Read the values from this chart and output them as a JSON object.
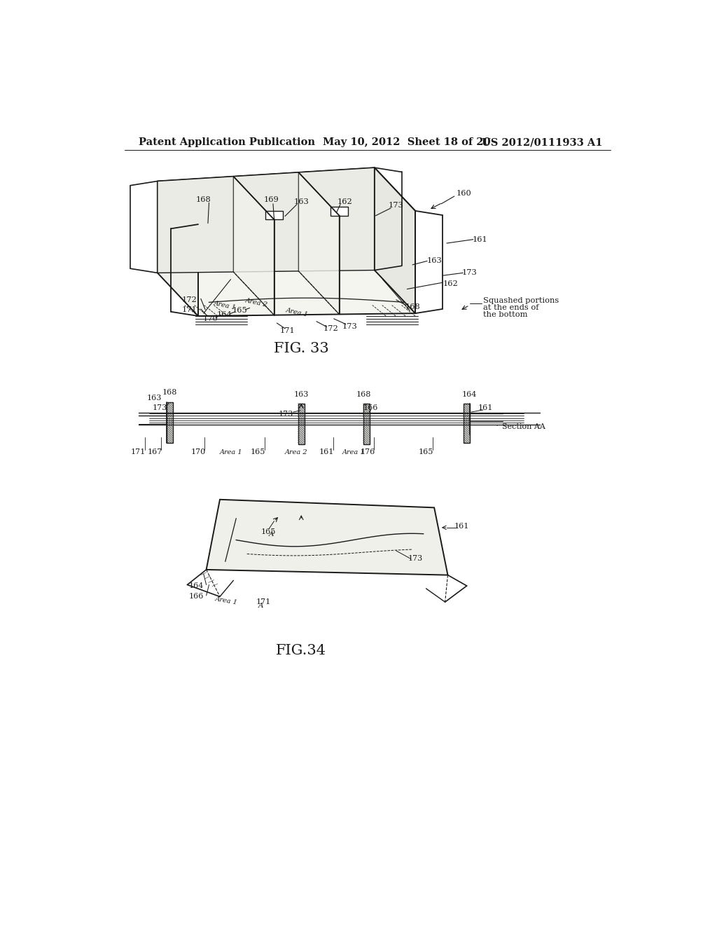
{
  "background_color": "#ffffff",
  "header_left": "Patent Application Publication",
  "header_mid": "May 10, 2012  Sheet 18 of 20",
  "header_right": "US 2012/0111933 A1",
  "header_fontsize": 10.5,
  "fig33_caption": "FIG. 33",
  "fig34_caption": "FIG.34",
  "caption_fontsize": 15,
  "fig_width": 10.24,
  "fig_height": 13.2,
  "dpi": 100
}
